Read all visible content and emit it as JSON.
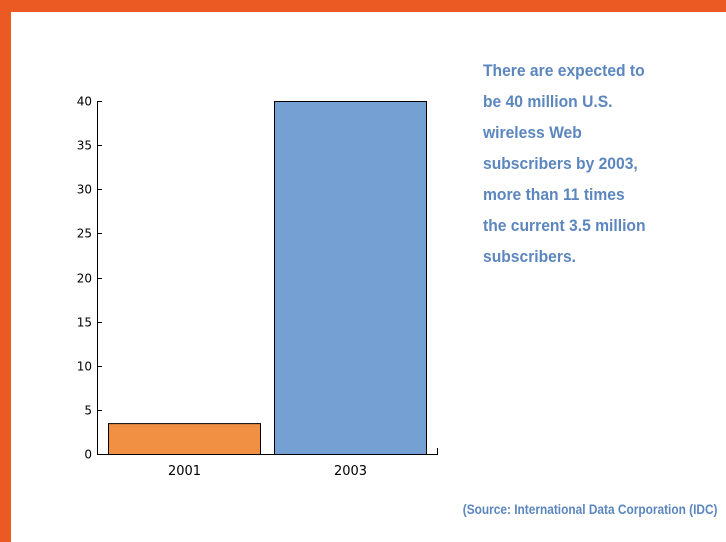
{
  "colors": {
    "frame": "#ec5a24",
    "bar_2001": "#f18f42",
    "bar_2003": "#74a0d4",
    "text_accent": "#5b86be"
  },
  "caption": {
    "lines": [
      "There are expected to",
      "be 40 million U.S.",
      "wireless Web",
      "subscribers by 2003,",
      "more than 11 times",
      "the current 3.5 million",
      "subscribers."
    ]
  },
  "source": "(Source: International Data Corporation (IDC)",
  "chart_data": {
    "type": "bar",
    "categories": [
      "2001",
      "2003"
    ],
    "values": [
      3.5,
      40
    ],
    "colors": [
      "#f18f42",
      "#74a0d4"
    ],
    "title": "",
    "xlabel": "",
    "ylabel": "",
    "ylim": [
      0,
      40
    ],
    "yticks": [
      0,
      5,
      10,
      15,
      20,
      25,
      30,
      35,
      40
    ],
    "grid": false,
    "legend": "none"
  }
}
